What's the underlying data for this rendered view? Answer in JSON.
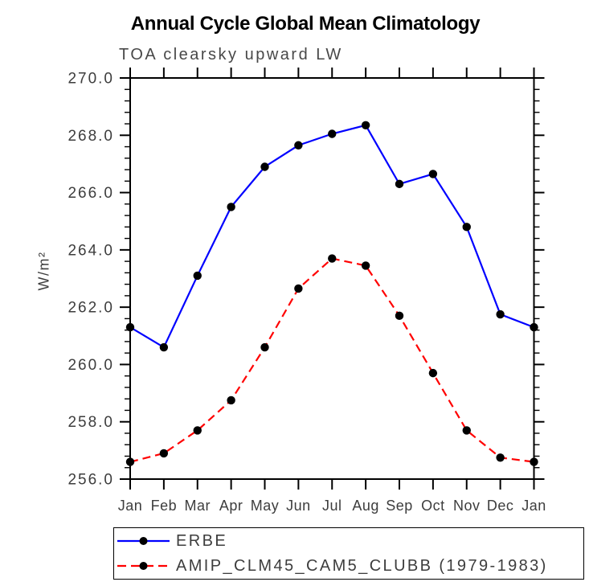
{
  "chart_data": {
    "type": "line",
    "title": "Annual Cycle Global Mean Climatology",
    "subtitle": "TOA clearsky upward LW",
    "xlabel": "",
    "ylabel": "W/m²",
    "categories": [
      "Jan",
      "Feb",
      "Mar",
      "Apr",
      "May",
      "Jun",
      "Jul",
      "Aug",
      "Sep",
      "Oct",
      "Nov",
      "Dec",
      "Jan"
    ],
    "ylim": [
      256.0,
      270.0
    ],
    "ytick_step": 2.0,
    "yminor_step": 0.4,
    "ytick_labels": [
      "256.0",
      "258.0",
      "260.0",
      "262.0",
      "264.0",
      "266.0",
      "268.0",
      "270.0"
    ],
    "grid": false,
    "legend_position": "bottom",
    "axis_color": "#000000",
    "tick_label_color": "#3d3d3d",
    "marker_color": "#000000",
    "series": [
      {
        "name": "ERBE",
        "color": "#0000ff",
        "line_style": "solid",
        "marker": "circle",
        "values": [
          261.3,
          260.6,
          263.1,
          265.5,
          266.9,
          267.65,
          268.05,
          268.35,
          266.3,
          266.65,
          264.8,
          261.75,
          261.3
        ]
      },
      {
        "name": "AMIP_CLM45_CAM5_CLUBB (1979-1983)",
        "color": "#ff0000",
        "line_style": "dashed",
        "marker": "circle",
        "values": [
          256.6,
          256.9,
          257.7,
          258.75,
          260.6,
          262.65,
          263.7,
          263.45,
          261.7,
          259.7,
          257.7,
          256.75,
          256.6
        ]
      }
    ]
  }
}
